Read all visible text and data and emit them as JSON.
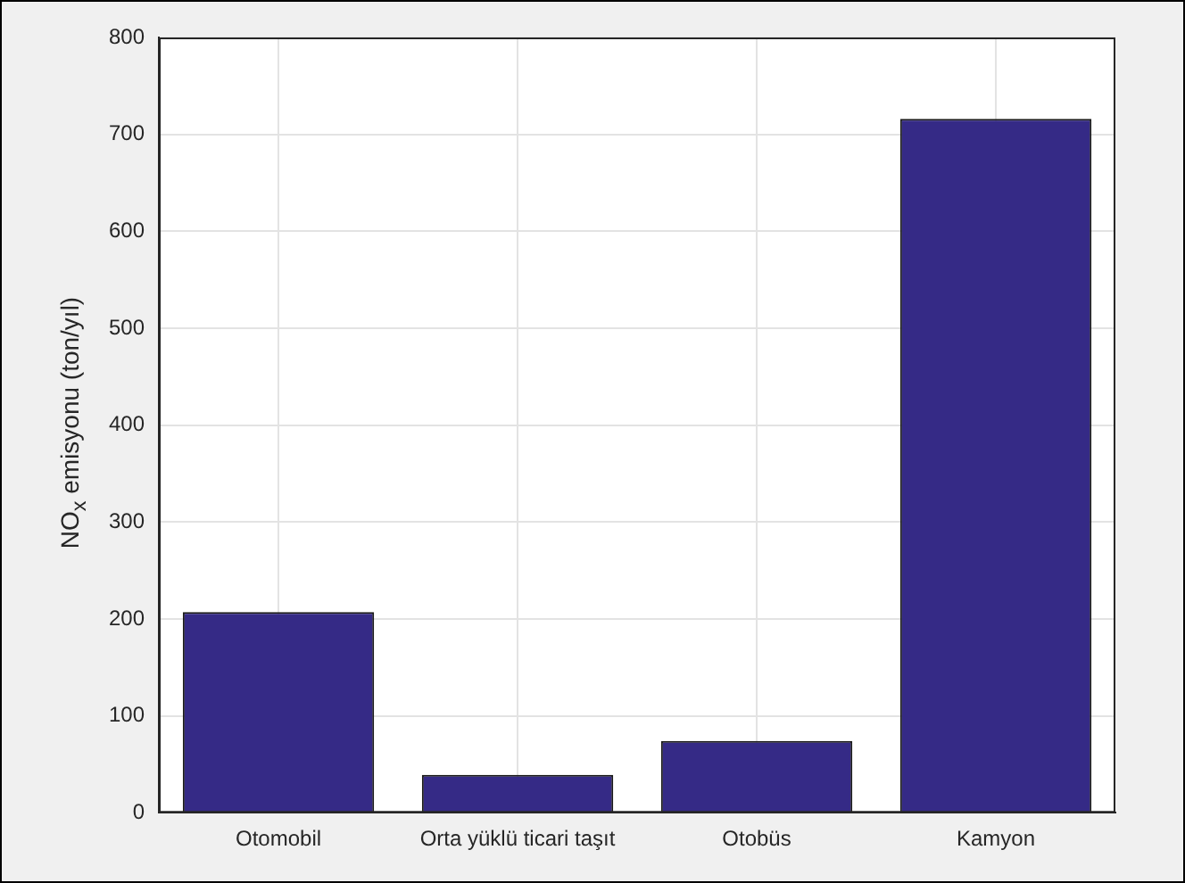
{
  "chart_data": {
    "type": "bar",
    "ylabel": "NO$_{x}$ emisyonu (ton/yıl)",
    "categories": [
      "Otomobil",
      "Orta yüklü ticari taşıt",
      "Otobüs",
      "Kamyon"
    ],
    "values": [
      207,
      39,
      74,
      716
    ],
    "color": "#352a86",
    "ylim": [
      0,
      800
    ],
    "yticks": [
      0,
      100,
      200,
      300,
      400,
      500,
      600,
      700,
      800
    ],
    "grid": true,
    "legend": false
  }
}
